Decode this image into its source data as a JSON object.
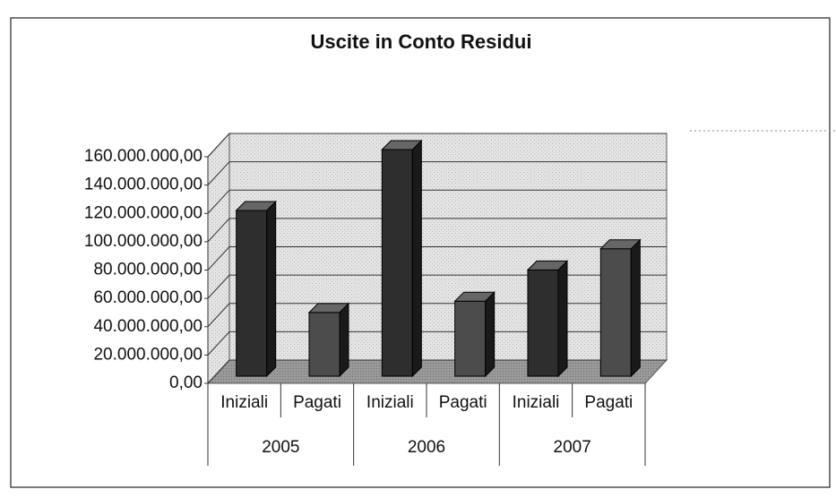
{
  "chart_data": {
    "type": "bar3d",
    "title": "Uscite in Conto Residui",
    "categories": [
      "Iniziali",
      "Pagati",
      "Iniziali",
      "Pagati",
      "Iniziali",
      "Pagati"
    ],
    "groups": [
      "2005",
      "2006",
      "2007"
    ],
    "values": [
      117000000,
      45000000,
      160000000,
      53000000,
      75000000,
      90000000
    ],
    "colors": [
      "#2e2e2e",
      "#4c4c4c",
      "#2e2e2e",
      "#4c4c4c",
      "#2e2e2e",
      "#4c4c4c"
    ],
    "ylim": [
      0,
      160000000
    ],
    "yticks": [
      {
        "value": 0,
        "label": "0,00"
      },
      {
        "value": 20000000,
        "label": "20.000.000,00"
      },
      {
        "value": 40000000,
        "label": "40.000.000,00"
      },
      {
        "value": 60000000,
        "label": "60.000.000,00"
      },
      {
        "value": 80000000,
        "label": "80.000.000,00"
      },
      {
        "value": 100000000,
        "label": "100.000.000,00"
      },
      {
        "value": 120000000,
        "label": "120.000.000,00"
      },
      {
        "value": 140000000,
        "label": "140.000.000,00"
      },
      {
        "value": 160000000,
        "label": "160.000.000,00"
      }
    ],
    "grid": true
  }
}
